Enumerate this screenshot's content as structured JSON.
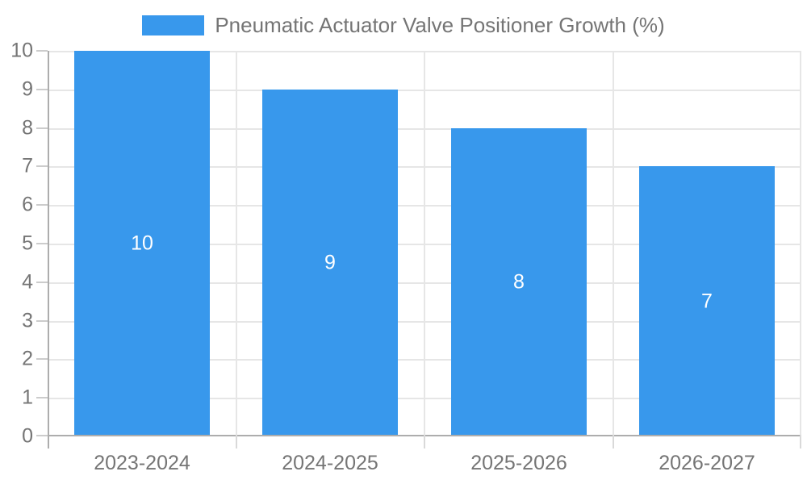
{
  "chart_data": {
    "type": "bar",
    "title": "Pneumatic Actuator Valve Positioner Growth (%)",
    "categories": [
      "2023-2024",
      "2024-2025",
      "2025-2026",
      "2026-2027"
    ],
    "values": [
      10,
      9,
      8,
      7
    ],
    "bar_value_labels": [
      "10",
      "9",
      "8",
      "7"
    ],
    "xlabel": "",
    "ylabel": "",
    "ylim": [
      0,
      10
    ],
    "y_ticks": [
      "0",
      "1",
      "2",
      "3",
      "4",
      "5",
      "6",
      "7",
      "8",
      "9",
      "10"
    ],
    "grid": "on",
    "legend_position": "top-center",
    "colors": {
      "bar": "#3898ec",
      "bar_label_text": "#ffffff",
      "axis_text": "#757575",
      "grid_line": "#e6e6e6",
      "axis_line": "#adadad",
      "y_tick_mark": "#cccccc",
      "x_tick_mark": "#d9d9d9",
      "background": "#ffffff"
    }
  }
}
